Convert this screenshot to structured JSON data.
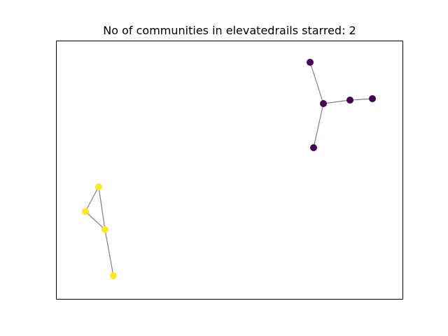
{
  "title": "No of communities in elevatedrails starred: 2",
  "colors": {
    "edge": "#808080",
    "frame": "#000000",
    "background": "#ffffff"
  },
  "communities": [
    {
      "id": 0,
      "color": "#440154"
    },
    {
      "id": 1,
      "color": "#fde725"
    }
  ],
  "nodes": [
    {
      "id": "a1",
      "community": 0
    },
    {
      "id": "a2",
      "community": 0
    },
    {
      "id": "a3",
      "community": 0
    },
    {
      "id": "a4",
      "community": 0
    },
    {
      "id": "a5",
      "community": 0
    },
    {
      "id": "b1",
      "community": 1
    },
    {
      "id": "b2",
      "community": 1
    },
    {
      "id": "b3",
      "community": 1
    },
    {
      "id": "b4",
      "community": 1
    }
  ],
  "edges": [
    [
      "a2",
      "a1"
    ],
    [
      "a2",
      "a3"
    ],
    [
      "a3",
      "a4"
    ],
    [
      "a2",
      "a5"
    ],
    [
      "b1",
      "b2"
    ],
    [
      "b1",
      "b3"
    ],
    [
      "b2",
      "b3"
    ],
    [
      "b3",
      "b4"
    ]
  ]
}
